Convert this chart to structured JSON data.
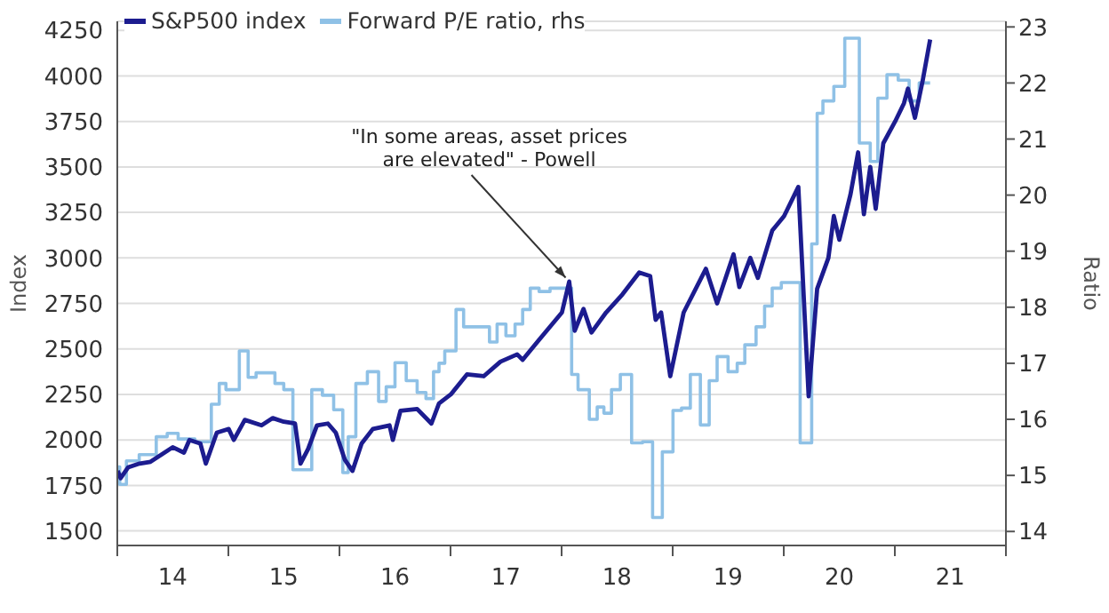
{
  "chart_data": {
    "type": "line",
    "xlim": [
      "2014-01-01",
      "2022-01-01"
    ],
    "xticks": [
      {
        "value": "2014-01-01",
        "label": null
      },
      {
        "value": "2014-07-02",
        "label": "14"
      },
      {
        "value": "2015-01-01",
        "label": null
      },
      {
        "value": "2015-07-02",
        "label": "15"
      },
      {
        "value": "2016-01-01",
        "label": null
      },
      {
        "value": "2016-07-02",
        "label": "16"
      },
      {
        "value": "2017-01-01",
        "label": null
      },
      {
        "value": "2017-07-02",
        "label": "17"
      },
      {
        "value": "2018-01-01",
        "label": null
      },
      {
        "value": "2018-07-02",
        "label": "18"
      },
      {
        "value": "2019-01-01",
        "label": null
      },
      {
        "value": "2019-07-02",
        "label": "19"
      },
      {
        "value": "2020-01-01",
        "label": null
      },
      {
        "value": "2020-07-02",
        "label": "20"
      },
      {
        "value": "2021-01-01",
        "label": null
      },
      {
        "value": "2021-07-02",
        "label": "21"
      },
      {
        "value": "2022-01-01",
        "label": null
      }
    ],
    "ylabel": "Index",
    "y2label": "Ratio",
    "ylim": [
      1420,
      4300
    ],
    "yticks": [
      1500,
      1750,
      2000,
      2250,
      2500,
      2750,
      3000,
      3250,
      3500,
      3750,
      4000,
      4250
    ],
    "y2lim": [
      13.75,
      23.1
    ],
    "y2ticks": [
      14,
      15,
      16,
      17,
      18,
      19,
      20,
      21,
      22,
      23
    ],
    "grid": "y",
    "legend": "top left",
    "series": [
      {
        "name": "S&P500 index",
        "color": "#1c1c8f",
        "x": [
          "2014-01-02",
          "2014-01-12",
          "2014-02-06",
          "2014-03-15",
          "2014-04-20",
          "2014-05-27",
          "2014-07-02",
          "2014-08-08",
          "2014-08-26",
          "2014-10-01",
          "2014-10-19",
          "2014-11-24",
          "2015-01-02",
          "2015-01-19",
          "2015-02-24",
          "2015-04-20",
          "2015-05-27",
          "2015-07-02",
          "2015-08-08",
          "2015-08-26",
          "2015-09-20",
          "2015-10-19",
          "2015-11-24",
          "2015-12-20",
          "2016-01-19",
          "2016-02-13",
          "2016-03-14",
          "2016-04-20",
          "2016-06-14",
          "2016-06-25",
          "2016-07-20",
          "2016-09-13",
          "2016-10-30",
          "2016-11-24",
          "2017-01-02",
          "2017-02-24",
          "2017-04-20",
          "2017-06-14",
          "2017-08-08",
          "2017-08-26",
          "2017-10-19",
          "2018-01-02",
          "2018-01-26",
          "2018-02-13",
          "2018-03-14",
          "2018-04-09",
          "2018-05-27",
          "2018-07-20",
          "2018-09-13",
          "2018-10-19",
          "2018-11-06",
          "2018-11-24",
          "2018-12-24",
          "2019-02-06",
          "2019-04-20",
          "2019-05-27",
          "2019-07-20",
          "2019-08-08",
          "2019-09-13",
          "2019-10-08",
          "2019-11-24",
          "2020-01-02",
          "2020-02-18",
          "2020-03-23",
          "2020-04-20",
          "2020-05-27",
          "2020-06-14",
          "2020-07-02",
          "2020-08-08",
          "2020-09-02",
          "2020-09-21",
          "2020-10-12",
          "2020-10-30",
          "2020-11-24",
          "2021-01-02",
          "2021-01-31",
          "2021-02-13",
          "2021-03-08",
          "2021-04-02",
          "2021-04-27"
        ],
        "values": [
          1830,
          1790,
          1850,
          1870,
          1880,
          1920,
          1960,
          1930,
          2000,
          1980,
          1870,
          2040,
          2060,
          2000,
          2110,
          2080,
          2120,
          2100,
          2090,
          1870,
          1950,
          2080,
          2090,
          2040,
          1890,
          1830,
          1980,
          2060,
          2080,
          2000,
          2160,
          2170,
          2090,
          2200,
          2250,
          2360,
          2350,
          2430,
          2470,
          2440,
          2550,
          2700,
          2870,
          2600,
          2720,
          2590,
          2700,
          2800,
          2920,
          2900,
          2660,
          2700,
          2350,
          2700,
          2940,
          2750,
          3020,
          2840,
          3000,
          2890,
          3150,
          3230,
          3390,
          2240,
          2830,
          3000,
          3230,
          3100,
          3350,
          3580,
          3240,
          3500,
          3270,
          3630,
          3750,
          3850,
          3930,
          3770,
          3970,
          4200
        ]
      },
      {
        "name": "Forward P/E ratio, rhs",
        "color": "#8fc1e6",
        "type": "step",
        "axis": "y2",
        "x": [
          "2014-01-02",
          "2014-01-09",
          "2014-01-31",
          "2014-03-14",
          "2014-05-09",
          "2014-06-14",
          "2014-07-20",
          "2014-09-13",
          "2014-11-06",
          "2014-12-02",
          "2014-12-24",
          "2015-02-06",
          "2015-03-07",
          "2015-04-02",
          "2015-06-03",
          "2015-07-02",
          "2015-08-01",
          "2015-10-02",
          "2015-11-06",
          "2015-12-13",
          "2016-01-12",
          "2016-01-30",
          "2016-02-24",
          "2016-04-02",
          "2016-05-09",
          "2016-06-03",
          "2016-07-02",
          "2016-08-08",
          "2016-09-13",
          "2016-10-12",
          "2016-11-06",
          "2016-11-24",
          "2016-12-13",
          "2017-01-19",
          "2017-02-13",
          "2017-05-09",
          "2017-06-03",
          "2017-07-02",
          "2017-08-01",
          "2017-08-26",
          "2017-09-20",
          "2017-10-19",
          "2017-11-24",
          "2018-02-03",
          "2018-02-24",
          "2018-04-02",
          "2018-04-28",
          "2018-05-20",
          "2018-06-14",
          "2018-07-13",
          "2018-08-19",
          "2018-09-24",
          "2018-10-27",
          "2018-11-28",
          "2019-01-02",
          "2019-01-30",
          "2019-02-28",
          "2019-04-02",
          "2019-05-01",
          "2019-05-27",
          "2019-07-02",
          "2019-08-01",
          "2019-08-26",
          "2019-10-02",
          "2019-10-30",
          "2019-11-24",
          "2019-12-24",
          "2020-02-24",
          "2020-04-02",
          "2020-04-20",
          "2020-05-09",
          "2020-06-14",
          "2020-07-20",
          "2020-09-06",
          "2020-10-12",
          "2020-11-06",
          "2020-12-06",
          "2021-01-12",
          "2021-02-17",
          "2021-03-22",
          "2021-04-27"
        ],
        "values": [
          15.15,
          14.84,
          15.26,
          15.37,
          15.69,
          15.75,
          15.65,
          15.6,
          16.27,
          16.64,
          16.53,
          17.22,
          16.75,
          16.83,
          16.64,
          16.53,
          15.1,
          16.53,
          16.43,
          16.17,
          15.05,
          15.69,
          16.64,
          16.85,
          16.32,
          16.58,
          17.01,
          16.69,
          16.48,
          16.37,
          16.85,
          17.0,
          17.22,
          17.96,
          17.65,
          17.38,
          17.7,
          17.49,
          17.7,
          17.96,
          18.34,
          18.28,
          18.34,
          16.8,
          16.53,
          16.0,
          16.22,
          16.11,
          16.53,
          16.8,
          15.58,
          15.6,
          14.25,
          15.42,
          16.16,
          16.2,
          16.8,
          15.9,
          16.69,
          17.12,
          16.85,
          17.0,
          17.33,
          17.65,
          18.02,
          18.34,
          18.44,
          15.58,
          19.13,
          21.46,
          21.68,
          21.94,
          22.8,
          20.93,
          20.6,
          21.73,
          22.15,
          22.05,
          21.68,
          22.0,
          22.0
        ]
      }
    ],
    "annotations": [
      {
        "text": "\"In some areas, asset prices are elevated\" - Powell",
        "x": "2018-01-26",
        "y": 2870
      }
    ]
  }
}
